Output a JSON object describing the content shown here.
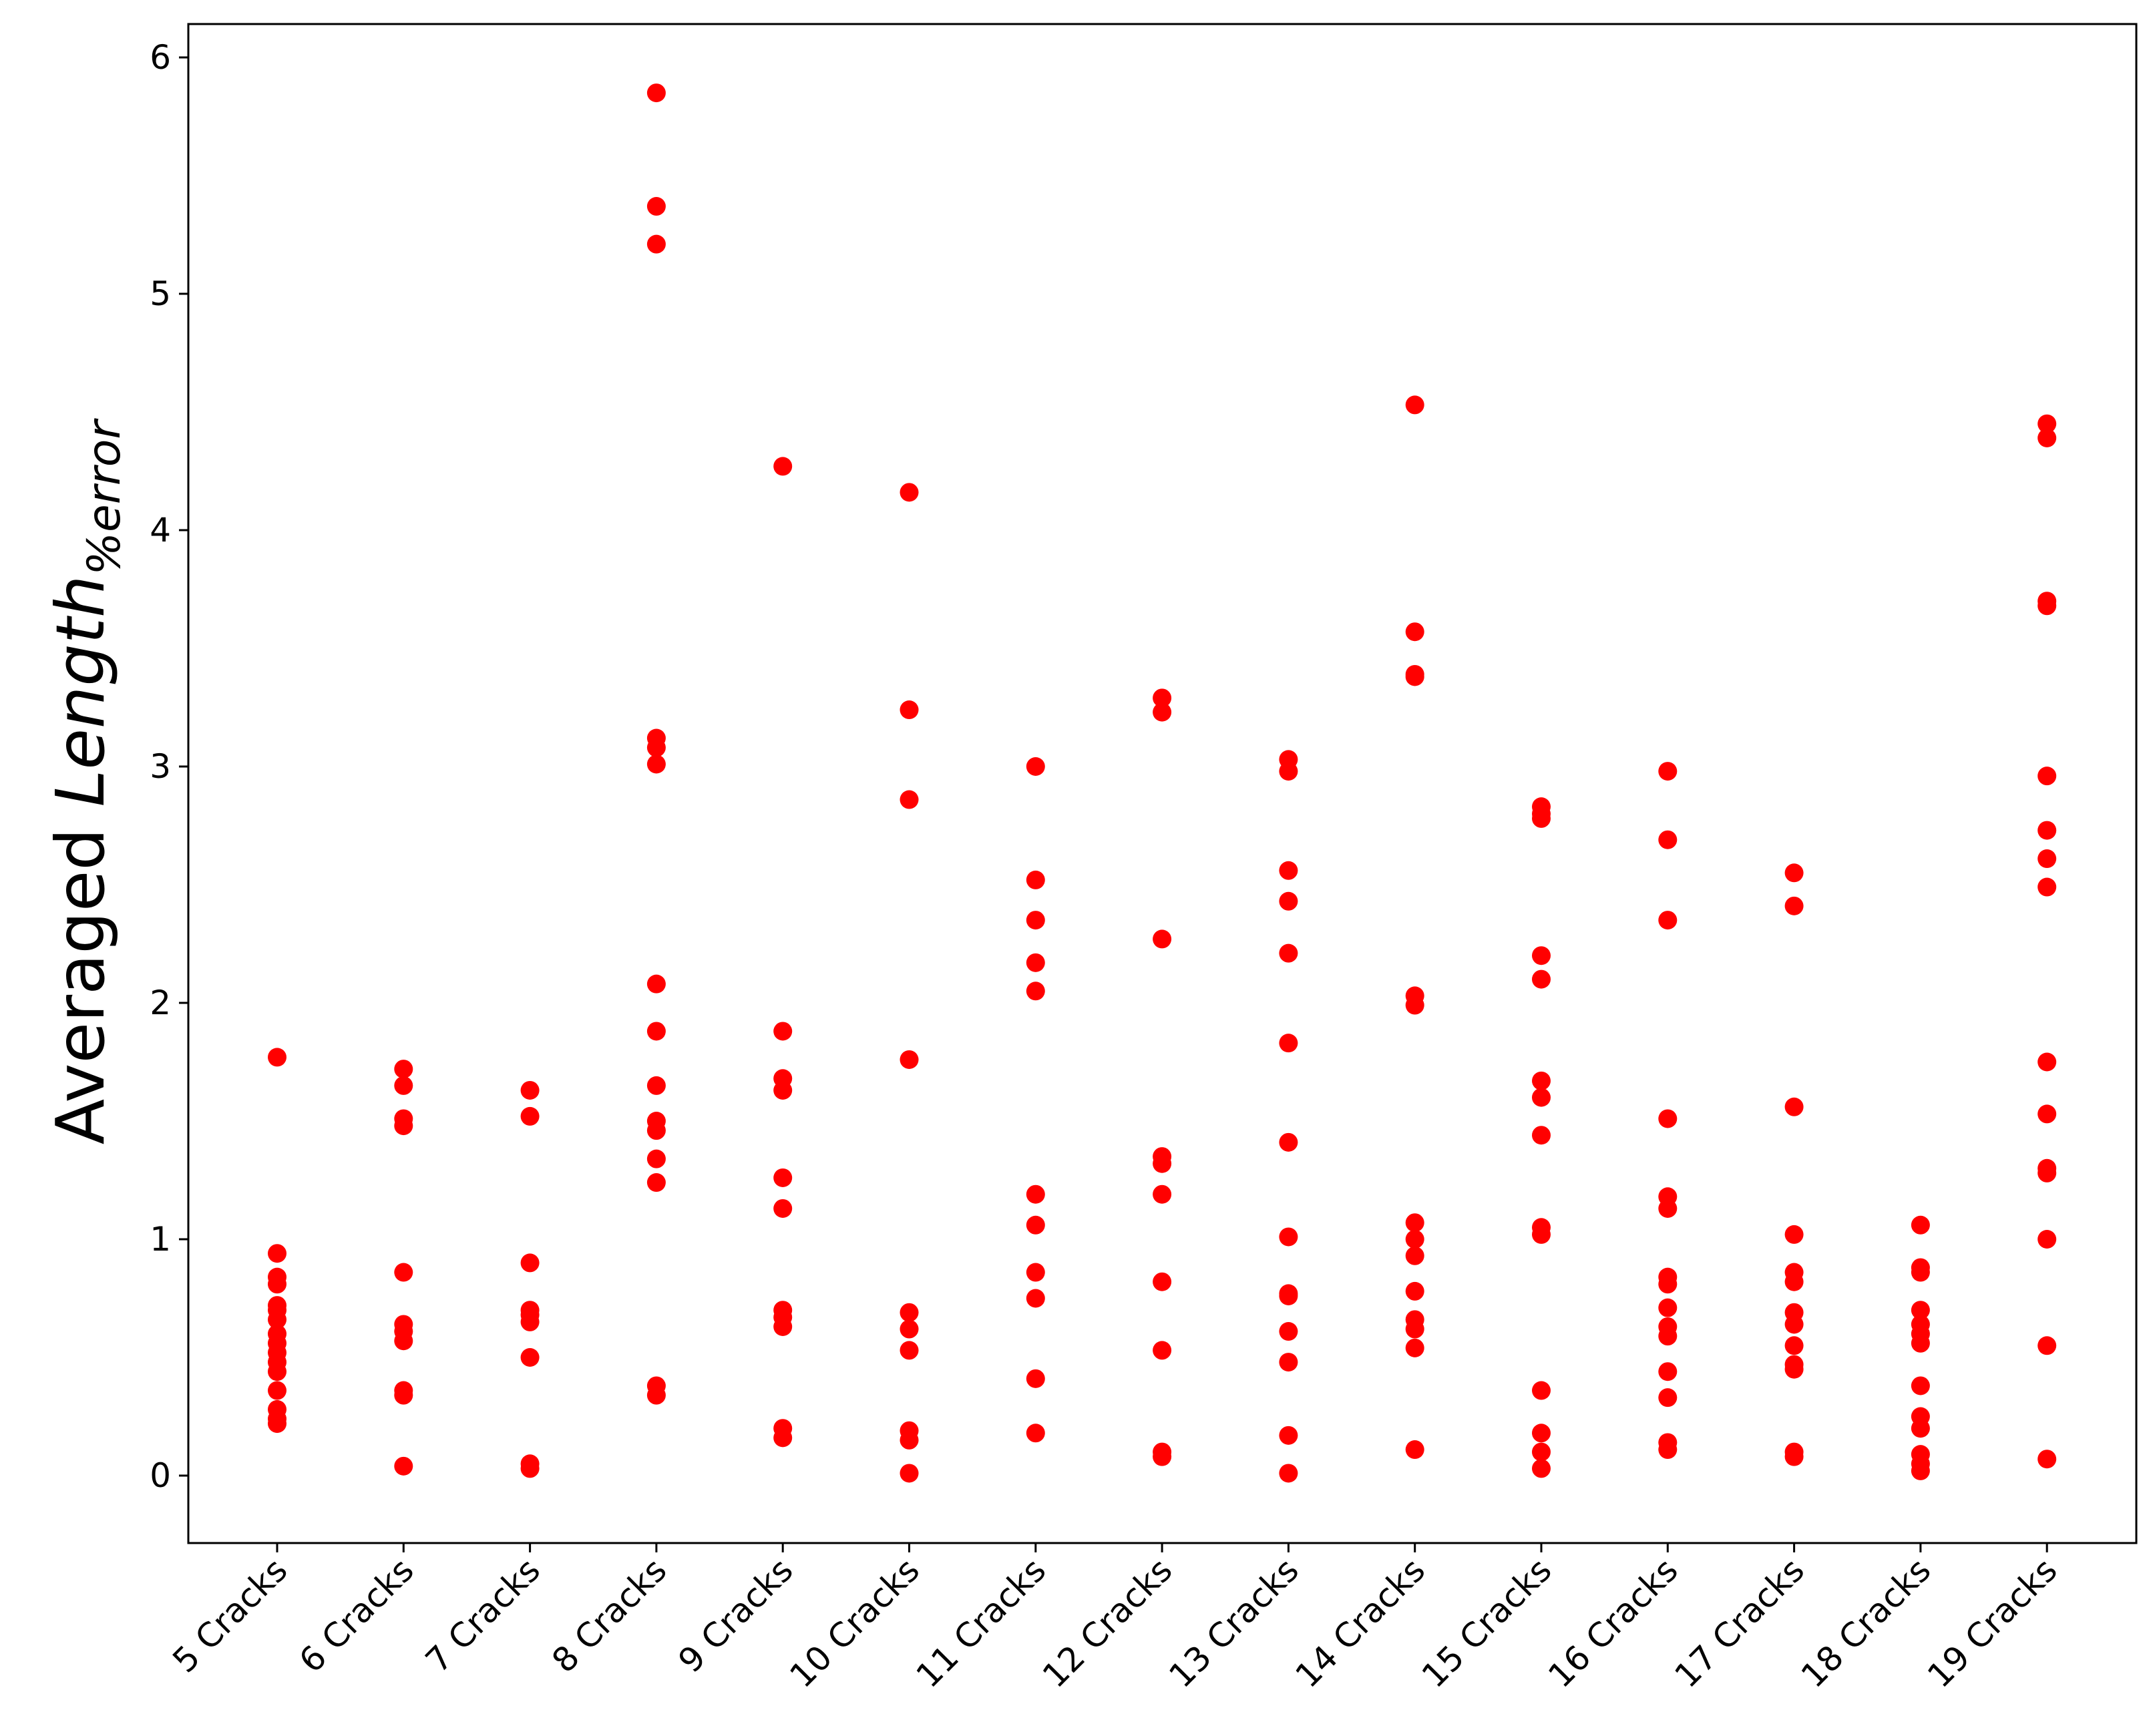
{
  "chart_data": {
    "type": "scatter",
    "title": "",
    "xlabel": "",
    "ylabel": {
      "prefix": "Averaged ",
      "main": "Length",
      "subscript": "%error"
    },
    "categories": [
      "5 Cracks",
      "6 Cracks",
      "7 Cracks",
      "8 Cracks",
      "9 Cracks",
      "10 Cracks",
      "11 Cracks",
      "12 Cracks",
      "13 Cracks",
      "14 Cracks",
      "15 Cracks",
      "16 Cracks",
      "17 Cracks",
      "18 Cracks",
      "19 Cracks"
    ],
    "ylim": [
      -0.28,
      6.15
    ],
    "yticks": [
      0,
      1,
      2,
      3,
      4,
      5,
      6
    ],
    "grid": false,
    "legend": "none",
    "marker_color": "#ff0000",
    "points": [
      [
        1.77,
        0.94,
        0.84,
        0.81,
        0.72,
        0.7,
        0.66,
        0.6,
        0.56,
        0.52,
        0.48,
        0.44,
        0.36,
        0.28,
        0.24,
        0.22
      ],
      [
        1.72,
        1.65,
        1.51,
        1.48,
        0.86,
        0.64,
        0.61,
        0.57,
        0.36,
        0.34,
        0.04
      ],
      [
        1.63,
        1.52,
        0.9,
        0.7,
        0.68,
        0.65,
        0.5,
        0.05,
        0.03
      ],
      [
        5.85,
        5.37,
        5.21,
        3.12,
        3.08,
        3.01,
        2.08,
        1.88,
        1.65,
        1.5,
        1.46,
        1.34,
        1.24,
        0.38,
        0.34
      ],
      [
        4.27,
        1.88,
        1.68,
        1.63,
        1.26,
        1.13,
        0.7,
        0.67,
        0.63,
        0.2,
        0.16
      ],
      [
        4.16,
        3.24,
        2.86,
        1.76,
        0.69,
        0.62,
        0.53,
        0.19,
        0.15,
        0.01
      ],
      [
        3.0,
        2.52,
        2.35,
        2.17,
        2.05,
        1.19,
        1.06,
        0.86,
        0.75,
        0.41,
        0.18
      ],
      [
        3.29,
        3.23,
        2.27,
        1.35,
        1.32,
        1.19,
        0.82,
        0.53,
        0.1,
        0.08
      ],
      [
        3.03,
        2.98,
        2.56,
        2.43,
        2.21,
        1.83,
        1.41,
        1.01,
        0.77,
        0.76,
        0.61,
        0.48,
        0.17,
        0.01
      ],
      [
        4.53,
        3.57,
        3.39,
        3.38,
        2.03,
        1.99,
        1.07,
        1.0,
        0.93,
        0.78,
        0.66,
        0.62,
        0.54,
        0.11
      ],
      [
        2.83,
        2.8,
        2.78,
        2.2,
        2.1,
        1.67,
        1.6,
        1.44,
        1.05,
        1.02,
        0.36,
        0.18,
        0.1,
        0.03
      ],
      [
        2.98,
        2.69,
        2.35,
        1.51,
        1.18,
        1.13,
        0.84,
        0.81,
        0.71,
        0.63,
        0.59,
        0.44,
        0.33,
        0.14,
        0.11
      ],
      [
        2.55,
        2.41,
        1.56,
        1.02,
        0.86,
        0.82,
        0.69,
        0.64,
        0.55,
        0.47,
        0.45,
        0.1,
        0.08
      ],
      [
        1.06,
        0.88,
        0.86,
        0.7,
        0.64,
        0.6,
        0.56,
        0.38,
        0.25,
        0.2,
        0.09,
        0.05,
        0.02
      ],
      [
        4.45,
        4.39,
        3.7,
        3.68,
        2.96,
        2.73,
        2.61,
        2.49,
        1.75,
        1.53,
        1.3,
        1.28,
        1.0,
        0.55,
        0.07
      ]
    ]
  }
}
